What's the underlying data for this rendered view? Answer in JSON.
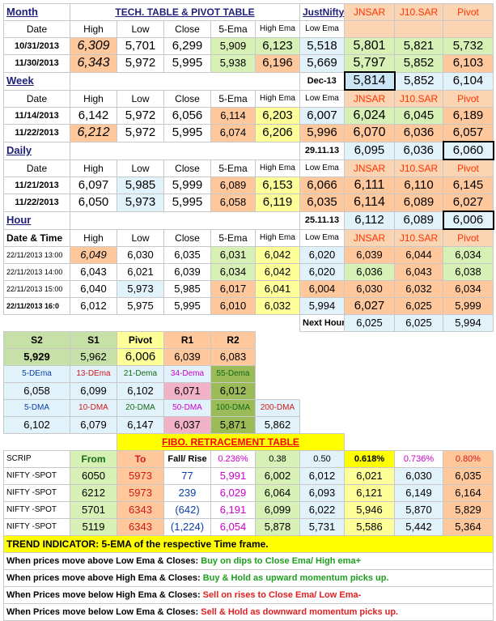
{
  "header": {
    "month": "Month",
    "title": "TECH. TABLE  &  PIVOT TABLE",
    "brand": "JustNifty"
  },
  "cols": {
    "date": "Date",
    "high": "High",
    "low": "Low",
    "close": "Close",
    "ema5": "5-Ema",
    "high_ema": "High Ema",
    "low_ema": "Low Ema",
    "jnsar": "JNSAR",
    "j10sar": "J10.SAR",
    "pivot": "Pivot",
    "date_time": "Date & Time"
  },
  "month": {
    "rows": [
      {
        "date": "10/31/2013",
        "high": "6,309",
        "low": "5,701",
        "close": "6,299",
        "ema5": "5,909",
        "high_ema": "6,123",
        "low_ema": "5,518",
        "jnsar": "5,801",
        "j10sar": "5,821",
        "pivot": "5,732"
      },
      {
        "date": "11/30/2013",
        "high": "6,343",
        "low": "5,972",
        "close": "5,995",
        "ema5": "5,938",
        "high_ema": "6,196",
        "low_ema": "5,669",
        "jnsar": "5,797",
        "j10sar": "5,852",
        "pivot": "6,103"
      }
    ]
  },
  "week": {
    "label": "Week",
    "ref_date": "Dec-13",
    "ref_jnsar": "5,814",
    "ref_j10sar": "5,852",
    "ref_pivot": "6,104",
    "rows": [
      {
        "date": "11/14/2013",
        "high": "6,142",
        "low": "5,972",
        "close": "6,056",
        "ema5": "6,114",
        "high_ema": "6,203",
        "low_ema": "6,007",
        "jnsar": "6,024",
        "j10sar": "6,045",
        "pivot": "6,189"
      },
      {
        "date": "11/22/2013",
        "high": "6,212",
        "low": "5,972",
        "close": "5,995",
        "ema5": "6,074",
        "high_ema": "6,206",
        "low_ema": "5,996",
        "jnsar": "6,070",
        "j10sar": "6,036",
        "pivot": "6,057"
      }
    ]
  },
  "daily": {
    "label": "Daily",
    "ref_date": "29.11.13",
    "ref_jnsar": "6,095",
    "ref_j10sar": "6,036",
    "ref_pivot": "6,060",
    "rows": [
      {
        "date": "11/21/2013",
        "high": "6,097",
        "low": "5,985",
        "close": "5,999",
        "ema5": "6,089",
        "high_ema": "6,153",
        "low_ema": "6,066",
        "jnsar": "6,111",
        "j10sar": "6,110",
        "pivot": "6,145"
      },
      {
        "date": "11/22/2013",
        "high": "6,050",
        "low": "5,973",
        "close": "5,995",
        "ema5": "6,058",
        "high_ema": "6,119",
        "low_ema": "6,035",
        "jnsar": "6,114",
        "j10sar": "6,089",
        "pivot": "6,027"
      }
    ]
  },
  "hour": {
    "label": "Hour",
    "ref_date": "25.11.13",
    "ref_jnsar": "6,112",
    "ref_j10sar": "6,089",
    "ref_pivot": "6,006",
    "rows": [
      {
        "date": "22/11/2013 13:00",
        "high": "6,049",
        "low": "6,030",
        "close": "6,035",
        "ema5": "6,031",
        "high_ema": "6,042",
        "low_ema": "6,020",
        "jnsar": "6,039",
        "j10sar": "6,044",
        "pivot": "6,034"
      },
      {
        "date": "22/11/2013 14:00",
        "high": "6,043",
        "low": "6,021",
        "close": "6,039",
        "ema5": "6,034",
        "high_ema": "6,042",
        "low_ema": "6,020",
        "jnsar": "6,036",
        "j10sar": "6,043",
        "pivot": "6,038"
      },
      {
        "date": "22/11/2013 15:00",
        "high": "6,040",
        "low": "5,973",
        "close": "5,985",
        "ema5": "6,017",
        "high_ema": "6,041",
        "low_ema": "6,004",
        "jnsar": "6,030",
        "j10sar": "6,032",
        "pivot": "6,034"
      },
      {
        "date": "22/11/2013 16:0",
        "high": "6,012",
        "low": "5,975",
        "close": "5,995",
        "ema5": "6,010",
        "high_ema": "6,032",
        "low_ema": "5,994",
        "jnsar": "6,027",
        "j10sar": "6,025",
        "pivot": "5,999"
      }
    ],
    "next_label": "Next Hour",
    "next_jnsar": "6,025",
    "next_j10sar": "6,025",
    "next_pivot": "5,994"
  },
  "pivot": {
    "labels": [
      "S2",
      "S1",
      "Pivot",
      "R1",
      "R2"
    ],
    "values": [
      "5,929",
      "5,962",
      "6,006",
      "6,039",
      "6,083"
    ]
  },
  "dema": {
    "labels": [
      "5-DEma",
      "13-DEma",
      "21-Dema",
      "34-Dema",
      "55-Dema"
    ],
    "values": [
      "6,058",
      "6,099",
      "6,102",
      "6,071",
      "6,012"
    ]
  },
  "dma": {
    "labels": [
      "5-DMA",
      "10-DMA",
      "20-DMA",
      "50-DMA",
      "100-DMA",
      "200-DMA"
    ],
    "values": [
      "6,102",
      "6,079",
      "6,147",
      "6,037",
      "5,871",
      "5,862"
    ]
  },
  "fibo": {
    "title": "FIBO. RETRACEMENT TABLE",
    "cols": [
      "SCRIP",
      "From",
      "To",
      "Fall/ Rise",
      "0.236%",
      "0.38",
      "0.50",
      "0.618%",
      "0.736%",
      "0.80%"
    ],
    "rows": [
      [
        "NIFTY -SPOT",
        "6050",
        "5973",
        "77",
        "5,991",
        "6,002",
        "6,012",
        "6,021",
        "6,030",
        "6,035"
      ],
      [
        "NIFTY -SPOT",
        "6212",
        "5973",
        "239",
        "6,029",
        "6,064",
        "6,093",
        "6,121",
        "6,149",
        "6,164"
      ],
      [
        "NIFTY -SPOT",
        "5701",
        "6343",
        "(642)",
        "6,191",
        "6,099",
        "6,022",
        "5,946",
        "5,870",
        "5,829"
      ],
      [
        "NIFTY -SPOT",
        "5119",
        "6343",
        "(1,224)",
        "6,054",
        "5,878",
        "5,731",
        "5,586",
        "5,442",
        "5,364"
      ]
    ]
  },
  "trend": {
    "title": "TREND INDICATOR: 5-EMA of the respective Time frame.",
    "notes": [
      {
        "a": "When prices move ",
        "b": "above Low Ema & Closes:",
        "c": " Buy on dips to Close Ema/ High ema+"
      },
      {
        "a": "When prices move ",
        "b": "above High Ema & Closes:",
        "c": " Buy & Hold as upward momentum picks up."
      },
      {
        "a": "When Prices move ",
        "b": "below High Ema & Closes:",
        "c": " Sell on rises to Close Ema/ Low Ema-"
      },
      {
        "a": "When Prices move ",
        "b": "below Low Ema & Closes:",
        "c": " Sell & Hold as downward momentum picks up."
      }
    ]
  }
}
